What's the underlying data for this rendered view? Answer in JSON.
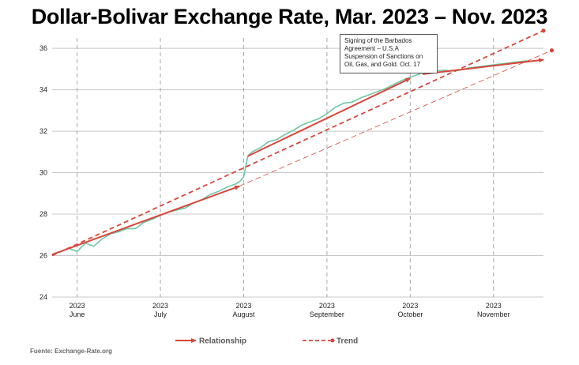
{
  "chart_data": {
    "type": "line",
    "title": "Dollar-Bolivar Exchange Rate, Mar. 2023 – Nov. 2023",
    "source": "Fuente: Exchange-Rate.org",
    "annotation": "Signing of the Barbados Agreement – U.S.A Suspension of Sanctions on Oil, Gas, and Gold. Oct. 17",
    "ylim": [
      24,
      36.5
    ],
    "yticks": [
      24,
      26,
      28,
      30,
      32,
      34,
      36
    ],
    "xlim": [
      0,
      59
    ],
    "xticks": [
      {
        "x": 3,
        "year": "2023",
        "month": "June"
      },
      {
        "x": 13,
        "year": "2023",
        "month": "July"
      },
      {
        "x": 23,
        "year": "2023",
        "month": "August"
      },
      {
        "x": 33,
        "year": "2023",
        "month": "September"
      },
      {
        "x": 43,
        "year": "2023",
        "month": "October"
      },
      {
        "x": 53,
        "year": "2023",
        "month": "November"
      }
    ],
    "grid": true,
    "legend_position": "bottom",
    "colors": {
      "rate": "#6cc7a6",
      "relationship": "#d9463a",
      "trend": "#d9463a"
    },
    "series": [
      {
        "name": "",
        "style": "thin-green",
        "x": [
          0,
          1,
          2,
          3,
          4,
          5,
          6,
          7,
          8,
          9,
          10,
          11,
          12,
          13,
          14,
          15,
          16,
          17,
          18,
          19,
          20,
          21,
          22,
          22.6,
          23,
          23.5,
          24,
          25,
          26,
          27,
          28,
          29,
          30,
          31,
          32,
          33,
          34,
          35,
          36,
          37,
          38,
          39,
          40,
          41,
          42,
          43,
          44,
          45,
          46,
          47,
          48,
          49,
          50,
          51,
          52,
          53,
          54,
          55,
          56,
          57
        ],
        "y": [
          26.05,
          26.2,
          26.35,
          26.2,
          26.6,
          26.45,
          26.8,
          27.05,
          27.15,
          27.3,
          27.3,
          27.6,
          27.75,
          27.95,
          28.1,
          28.2,
          28.3,
          28.55,
          28.7,
          28.95,
          29.1,
          29.3,
          29.45,
          29.6,
          29.8,
          30.8,
          31.0,
          31.2,
          31.5,
          31.6,
          31.85,
          32.05,
          32.3,
          32.45,
          32.6,
          32.85,
          33.15,
          33.35,
          33.4,
          33.6,
          33.75,
          33.9,
          34.05,
          34.25,
          34.45,
          34.6,
          34.75,
          34.85,
          34.9,
          34.95,
          34.9,
          34.95,
          35.05,
          35.1,
          35.15,
          35.2,
          35.25,
          35.3,
          35.35,
          35.4
        ]
      },
      {
        "name": "Relationship",
        "style": "solid-arrow",
        "x": [
          0,
          22.5
        ],
        "y": [
          26.05,
          29.35
        ]
      },
      {
        "name": "Relationship",
        "style": "solid-arrow",
        "x": [
          23.5,
          43
        ],
        "y": [
          30.8,
          34.55
        ]
      },
      {
        "name": "Relationship",
        "style": "solid-arrow",
        "x": [
          44.5,
          59
        ],
        "y": [
          34.75,
          35.45
        ]
      },
      {
        "name": "Trend",
        "style": "dashed-dot",
        "x": [
          0,
          59
        ],
        "y": [
          26.0,
          36.85
        ]
      },
      {
        "name": "Trend",
        "style": "thin-dashed-dot",
        "x": [
          22.5,
          60
        ],
        "y": [
          29.35,
          35.9
        ]
      }
    ],
    "legend": [
      {
        "label": "Relationship",
        "style": "solid-arrow"
      },
      {
        "label": "Trend",
        "style": "dashed-dot"
      }
    ]
  }
}
